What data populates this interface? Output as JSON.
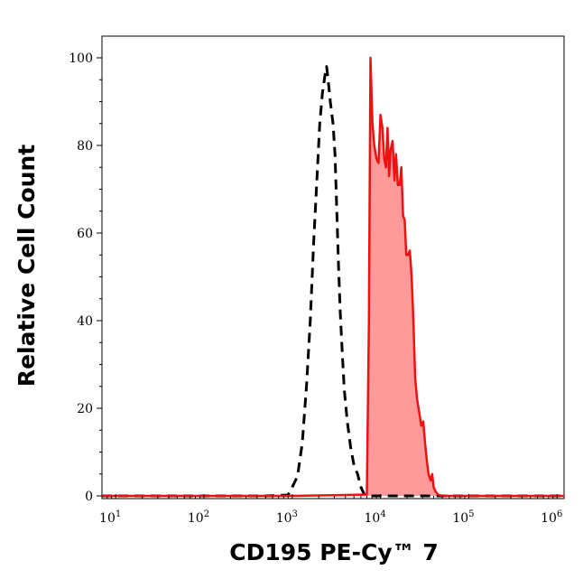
{
  "chart_data": {
    "type": "area",
    "xlabel": "CD195 PE-Cy™ 7",
    "ylabel": "Relative Cell Count",
    "x_scale": "log",
    "xlim": [
      7,
      1200000
    ],
    "ylim": [
      0,
      100
    ],
    "x_tick_labels": [
      {
        "base": "10",
        "exp": "1",
        "value": 10
      },
      {
        "base": "10",
        "exp": "2",
        "value": 100
      },
      {
        "base": "10",
        "exp": "3",
        "value": 1000
      },
      {
        "base": "10",
        "exp": "4",
        "value": 10000
      },
      {
        "base": "10",
        "exp": "5",
        "value": 100000
      },
      {
        "base": "10",
        "exp": "6",
        "value": 1000000
      }
    ],
    "y_ticks": [
      0,
      20,
      40,
      60,
      80,
      100
    ],
    "grid": false,
    "series": [
      {
        "style": "dashed",
        "color": "#000000",
        "fill": null,
        "points": [
          [
            7,
            0
          ],
          [
            100,
            0
          ],
          [
            500,
            0
          ],
          [
            900,
            0.2
          ],
          [
            1000,
            2
          ],
          [
            1150,
            4.5
          ],
          [
            1300,
            12
          ],
          [
            1450,
            25
          ],
          [
            1600,
            40
          ],
          [
            1750,
            58
          ],
          [
            1900,
            72
          ],
          [
            2050,
            85
          ],
          [
            2200,
            92
          ],
          [
            2350,
            96
          ],
          [
            2450,
            98
          ],
          [
            2550,
            95
          ],
          [
            2700,
            90
          ],
          [
            2900,
            85
          ],
          [
            3050,
            78
          ],
          [
            3200,
            65
          ],
          [
            3350,
            52
          ],
          [
            3500,
            42
          ],
          [
            3700,
            32
          ],
          [
            3900,
            24
          ],
          [
            4200,
            17
          ],
          [
            4600,
            11
          ],
          [
            5000,
            7
          ],
          [
            5500,
            5
          ],
          [
            6000,
            2
          ],
          [
            6500,
            0.5
          ],
          [
            7000,
            0
          ],
          [
            20000,
            0
          ],
          [
            1200000,
            0
          ]
        ]
      },
      {
        "style": "solid",
        "color": "#ee1111",
        "fill": "#ff9a9a",
        "points": [
          [
            7,
            0
          ],
          [
            1000,
            0
          ],
          [
            7000,
            0.3
          ],
          [
            7400,
            40
          ],
          [
            7700,
            100
          ],
          [
            8100,
            85
          ],
          [
            8500,
            80
          ],
          [
            9000,
            77
          ],
          [
            9500,
            76
          ],
          [
            10000,
            87
          ],
          [
            10500,
            84
          ],
          [
            11000,
            77
          ],
          [
            11500,
            75
          ],
          [
            12000,
            84
          ],
          [
            12500,
            73
          ],
          [
            13000,
            79
          ],
          [
            13700,
            81
          ],
          [
            14400,
            72
          ],
          [
            15000,
            78
          ],
          [
            15700,
            71
          ],
          [
            16500,
            71
          ],
          [
            17200,
            75
          ],
          [
            18000,
            64
          ],
          [
            18800,
            63
          ],
          [
            19600,
            55
          ],
          [
            20500,
            55
          ],
          [
            21500,
            56
          ],
          [
            22500,
            50
          ],
          [
            23500,
            41
          ],
          [
            24700,
            27
          ],
          [
            26000,
            22
          ],
          [
            27500,
            19
          ],
          [
            29000,
            16
          ],
          [
            30500,
            17
          ],
          [
            32000,
            12
          ],
          [
            33500,
            8
          ],
          [
            35000,
            5
          ],
          [
            37000,
            3.5
          ],
          [
            38500,
            5
          ],
          [
            40000,
            2
          ],
          [
            42000,
            1
          ],
          [
            45000,
            0.3
          ],
          [
            50000,
            0
          ],
          [
            1200000,
            0
          ]
        ]
      }
    ]
  }
}
